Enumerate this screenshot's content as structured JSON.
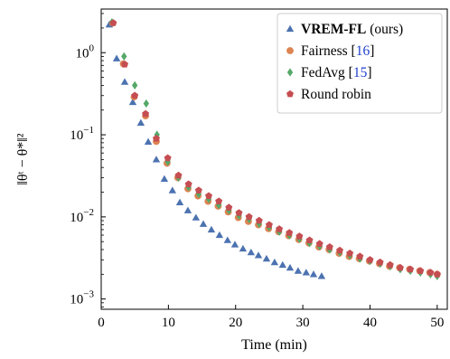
{
  "chart_data": {
    "type": "scatter",
    "xlabel": "Time (min)",
    "ylabel": "‖θᵗ − θ*‖²",
    "xlim": [
      0,
      51.5
    ],
    "ylim": [
      0.00075,
      3.4
    ],
    "yscale": "log",
    "grid": false,
    "legend_position": "top-right",
    "x_ticks": [
      0,
      10,
      20,
      30,
      40,
      50
    ],
    "x_tick_labels": [
      "0",
      "10",
      "20",
      "30",
      "40",
      "50"
    ],
    "y_ticks": [
      0.001,
      0.01,
      0.1,
      1
    ],
    "y_tick_base": "10",
    "y_tick_exponents": [
      "−3",
      "−2",
      "−1",
      "0"
    ],
    "series": [
      {
        "name": "VREM-FL",
        "name_suffix": " (ours)",
        "marker": "triangle",
        "color": "#4c72b0",
        "x": [
          1.2,
          2.3,
          3.5,
          4.7,
          5.9,
          7.0,
          8.2,
          9.4,
          10.6,
          11.7,
          12.9,
          14.1,
          15.2,
          16.4,
          17.6,
          18.8,
          19.9,
          21.1,
          22.3,
          23.4,
          24.6,
          25.8,
          27.0,
          28.1,
          29.3,
          30.5,
          31.6,
          32.8
        ],
        "y": [
          2.2,
          0.85,
          0.44,
          0.25,
          0.14,
          0.082,
          0.05,
          0.029,
          0.021,
          0.015,
          0.012,
          0.0098,
          0.0082,
          0.007,
          0.006,
          0.0052,
          0.0046,
          0.0041,
          0.0037,
          0.0034,
          0.0031,
          0.0028,
          0.0026,
          0.0024,
          0.0022,
          0.0021,
          0.002,
          0.0019
        ]
      },
      {
        "name": "Fairness",
        "ref": "16",
        "marker": "circle",
        "color": "#dd8452",
        "x": [
          1.7,
          3.3,
          4.9,
          6.6,
          8.2,
          9.8,
          11.4,
          12.9,
          14.4,
          15.9,
          17.4,
          18.9,
          20.4,
          21.9,
          23.4,
          24.9,
          26.4,
          27.9,
          29.4,
          30.9,
          32.4,
          33.9,
          35.4,
          36.9,
          38.4,
          39.9,
          41.4,
          42.9,
          44.4,
          45.9,
          47.4,
          48.9,
          50.0
        ],
        "y": [
          2.3,
          0.73,
          0.29,
          0.17,
          0.083,
          0.045,
          0.03,
          0.022,
          0.018,
          0.0155,
          0.0135,
          0.0115,
          0.0098,
          0.0088,
          0.008,
          0.0072,
          0.0066,
          0.0059,
          0.0053,
          0.0048,
          0.0043,
          0.004,
          0.0036,
          0.0033,
          0.0031,
          0.0029,
          0.0027,
          0.0025,
          0.0024,
          0.0023,
          0.0022,
          0.0021,
          0.002
        ]
      },
      {
        "name": "FedAvg",
        "ref": "15",
        "marker": "diamond",
        "color": "#55a868",
        "x": [
          1.6,
          3.4,
          5.0,
          6.7,
          8.3,
          9.9,
          11.5,
          13.0,
          14.5,
          16.0,
          17.5,
          19.0,
          20.5,
          22.0,
          23.5,
          25.0,
          26.5,
          28.0,
          29.5,
          31.0,
          32.5,
          34.0,
          35.5,
          37.0,
          38.5,
          40.0,
          41.5,
          43.0,
          44.5,
          46.0,
          47.5,
          49.0,
          50.0
        ],
        "y": [
          2.35,
          0.9,
          0.4,
          0.24,
          0.1,
          0.047,
          0.03,
          0.023,
          0.019,
          0.0165,
          0.014,
          0.012,
          0.0104,
          0.0094,
          0.0083,
          0.0075,
          0.0066,
          0.006,
          0.0054,
          0.0048,
          0.0044,
          0.004,
          0.0037,
          0.0034,
          0.0031,
          0.0029,
          0.0027,
          0.0025,
          0.0023,
          0.0022,
          0.0021,
          0.002,
          0.0019
        ]
      },
      {
        "name": "Round robin",
        "marker": "pentagon",
        "color": "#c44e52",
        "x": [
          1.8,
          3.5,
          5.0,
          6.6,
          8.2,
          9.9,
          11.5,
          13.0,
          14.5,
          16.0,
          17.5,
          19.0,
          20.5,
          22.0,
          23.5,
          25.0,
          26.5,
          28.0,
          29.5,
          31.0,
          32.5,
          34.0,
          35.5,
          37.0,
          38.5,
          40.0,
          41.5,
          43.0,
          44.5,
          46.0,
          47.5,
          49.0,
          50.0
        ],
        "y": [
          2.3,
          0.72,
          0.3,
          0.18,
          0.09,
          0.052,
          0.032,
          0.025,
          0.021,
          0.018,
          0.0155,
          0.013,
          0.0112,
          0.01,
          0.009,
          0.008,
          0.0071,
          0.0064,
          0.0058,
          0.0052,
          0.0047,
          0.0043,
          0.0039,
          0.0036,
          0.0033,
          0.003,
          0.0028,
          0.0026,
          0.0024,
          0.0023,
          0.0022,
          0.0021,
          0.002
        ]
      }
    ]
  }
}
